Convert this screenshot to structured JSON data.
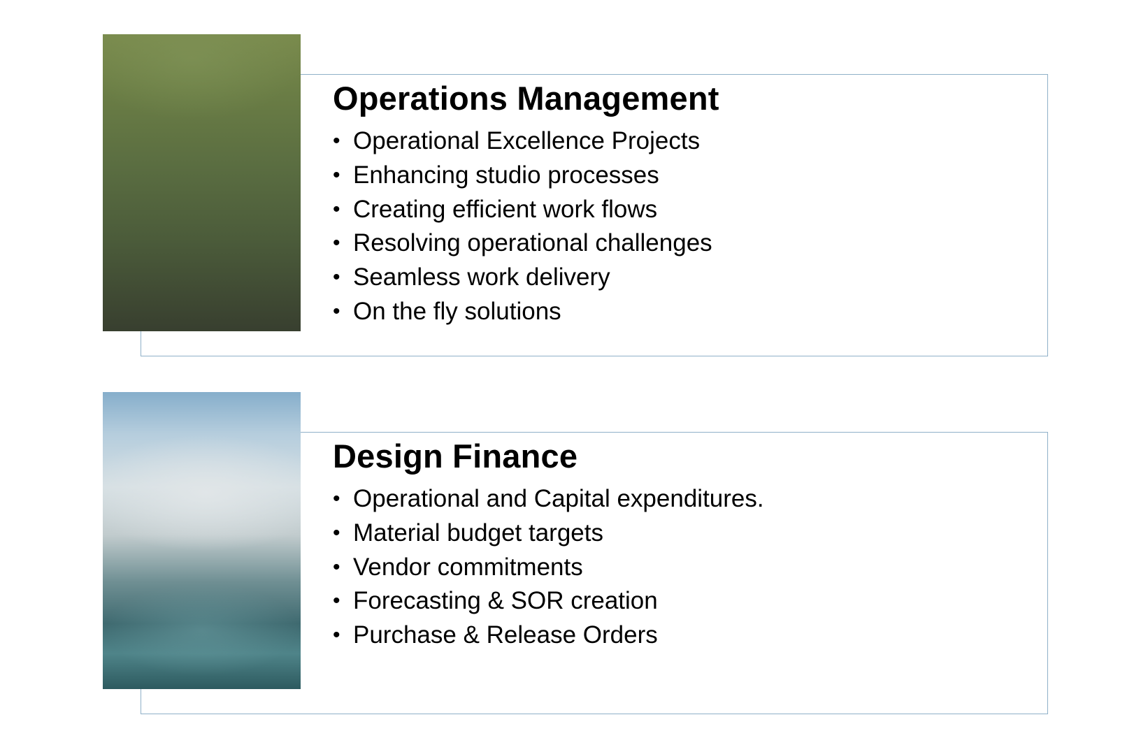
{
  "sections": [
    {
      "title": "Operations Management",
      "image": "green-blurred-photo",
      "bullets": [
        "Operational Excellence Projects",
        "Enhancing studio processes",
        "Creating efficient work flows",
        "Resolving operational challenges",
        "Seamless work delivery",
        "On the fly solutions"
      ]
    },
    {
      "title": "Design Finance",
      "image": "blue-blurred-photo",
      "bullets": [
        "Operational and Capital expenditures.",
        "Material budget targets",
        "Vendor commitments",
        "Forecasting & SOR creation",
        "Purchase & Release Orders"
      ]
    }
  ],
  "colors": {
    "frame_border": "#8fb0c8",
    "text": "#000000",
    "background": "#ffffff"
  }
}
